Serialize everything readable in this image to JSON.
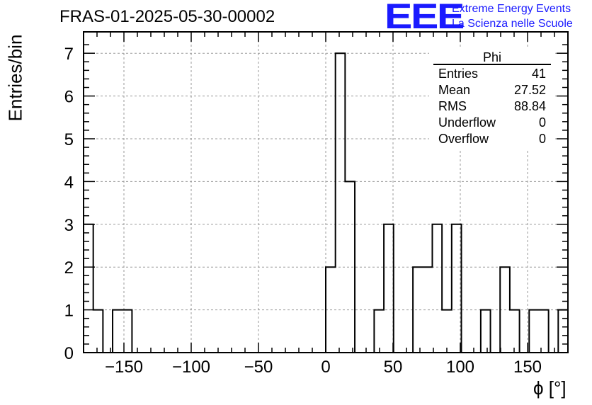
{
  "title": "FRAS-01-2025-05-30-00002",
  "logo": {
    "mark": "EEE",
    "line1": "Extreme Energy Events",
    "line2": "La Scienza nelle Scuole",
    "color": "#1a1aff"
  },
  "stats": {
    "title": "Phi",
    "rows": [
      {
        "label": "Entries",
        "value": "41"
      },
      {
        "label": "Mean",
        "value": "27.52"
      },
      {
        "label": "RMS",
        "value": "88.84"
      },
      {
        "label": "Underflow",
        "value": "0"
      },
      {
        "label": "Overflow",
        "value": "0"
      }
    ]
  },
  "chart_data": {
    "type": "bar",
    "histogram": true,
    "xlabel": "ϕ [°]",
    "ylabel": "Entries/bin",
    "xlim": [
      -180,
      180
    ],
    "ylim": [
      0,
      7.5
    ],
    "bin_width": 7.2,
    "x_ticks": [
      -150,
      -100,
      -50,
      0,
      50,
      100,
      150
    ],
    "x_tick_labels": [
      "−150",
      "−100",
      "−50",
      "0",
      "50",
      "100",
      "150"
    ],
    "y_ticks": [
      0,
      1,
      2,
      3,
      4,
      5,
      6,
      7
    ],
    "y_tick_labels": [
      "0",
      "1",
      "2",
      "3",
      "4",
      "5",
      "6",
      "7"
    ],
    "grid": true,
    "values": [
      3,
      1,
      0,
      1,
      1,
      0,
      0,
      0,
      0,
      0,
      0,
      0,
      0,
      0,
      0,
      0,
      0,
      0,
      0,
      0,
      0,
      0,
      0,
      0,
      0,
      2,
      7,
      4,
      0,
      0,
      1,
      3,
      0,
      0,
      2,
      2,
      3,
      1,
      3,
      0,
      0,
      1,
      0,
      2,
      1,
      0,
      1,
      1,
      0,
      1
    ]
  }
}
